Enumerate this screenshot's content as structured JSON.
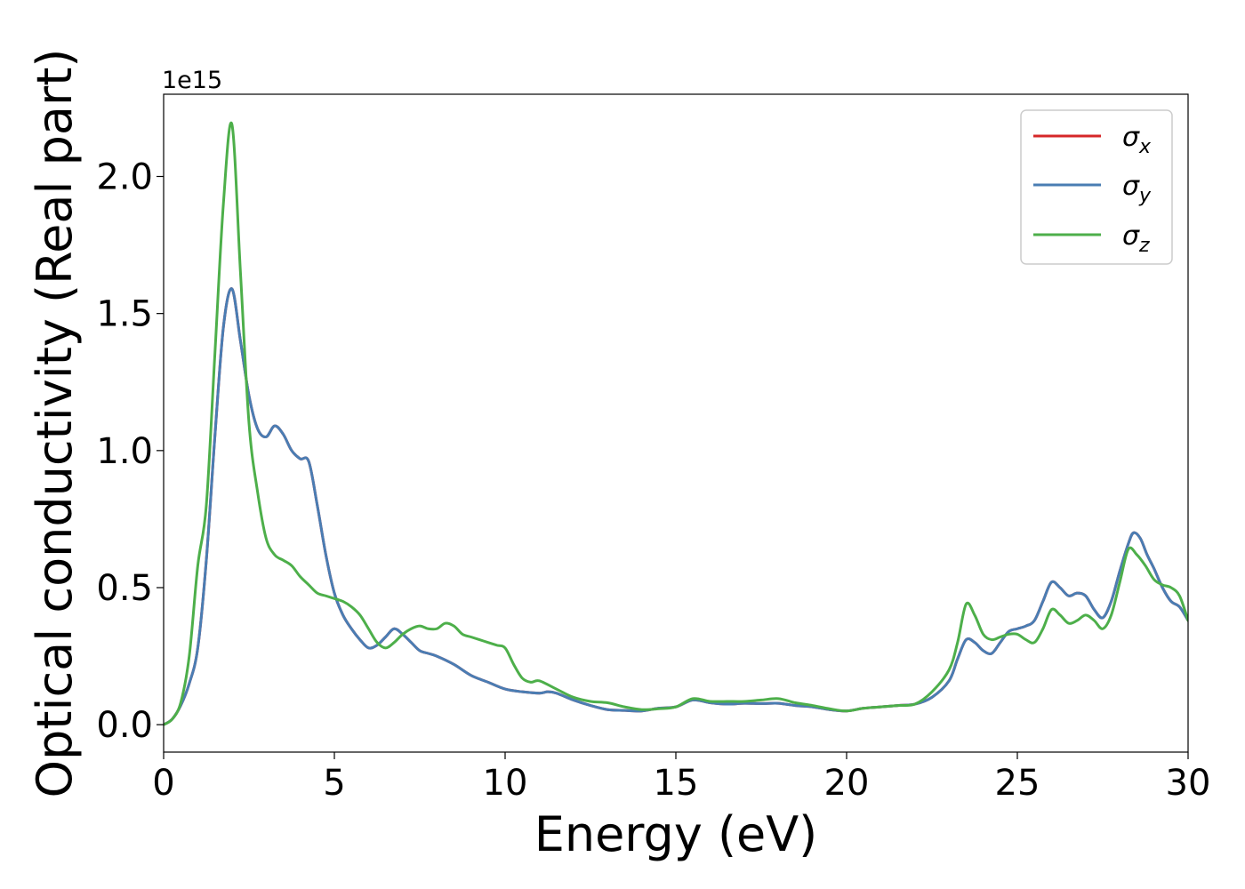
{
  "chart_data": {
    "type": "line",
    "xlabel": "Energy (eV)",
    "ylabel": "Optical conductivity (Real part)",
    "y_offset_label": "1e15",
    "y_scale": 1000000000000000.0,
    "xlim": [
      0,
      30
    ],
    "ylim": [
      -0.1,
      2.3
    ],
    "x_ticks": [
      0,
      5,
      10,
      15,
      20,
      25,
      30
    ],
    "x_tick_labels": [
      "0",
      "5",
      "10",
      "15",
      "20",
      "25",
      "30"
    ],
    "y_ticks": [
      0.0,
      0.5,
      1.0,
      1.5,
      2.0
    ],
    "y_tick_labels": [
      "0.0",
      "0.5",
      "1.0",
      "1.5",
      "2.0"
    ],
    "grid": false,
    "legend_position": "top-right",
    "series": [
      {
        "name": "σx",
        "label_main": "σ",
        "label_sub": "x",
        "color": "#d62728",
        "x": [
          0,
          0.25,
          0.5,
          0.75,
          1.0,
          1.25,
          1.5,
          1.75,
          2.0,
          2.25,
          2.5,
          2.75,
          3.0,
          3.25,
          3.5,
          3.75,
          4.0,
          4.25,
          4.5,
          4.75,
          5.0,
          5.25,
          5.5,
          5.75,
          6.0,
          6.25,
          6.5,
          6.75,
          7.0,
          7.25,
          7.5,
          7.75,
          8.0,
          8.5,
          9.0,
          9.5,
          10.0,
          10.5,
          11.0,
          11.25,
          11.5,
          12.0,
          12.5,
          13.0,
          13.5,
          14.0,
          14.5,
          15.0,
          15.5,
          16.0,
          16.5,
          17.0,
          17.5,
          18.0,
          18.5,
          19.0,
          19.5,
          20.0,
          20.5,
          21.0,
          21.5,
          22.0,
          22.5,
          23.0,
          23.25,
          23.5,
          23.75,
          24.0,
          24.25,
          24.5,
          24.75,
          25.0,
          25.25,
          25.5,
          25.75,
          26.0,
          26.25,
          26.5,
          26.75,
          27.0,
          27.25,
          27.5,
          27.75,
          28.0,
          28.25,
          28.4,
          28.6,
          28.8,
          29.0,
          29.25,
          29.5,
          29.75,
          30.0
        ],
        "y": [
          0.0,
          0.02,
          0.07,
          0.15,
          0.28,
          0.6,
          1.05,
          1.45,
          1.59,
          1.4,
          1.2,
          1.08,
          1.05,
          1.09,
          1.06,
          1.0,
          0.97,
          0.96,
          0.8,
          0.62,
          0.48,
          0.4,
          0.35,
          0.31,
          0.28,
          0.29,
          0.32,
          0.35,
          0.33,
          0.3,
          0.27,
          0.26,
          0.25,
          0.22,
          0.18,
          0.155,
          0.13,
          0.12,
          0.115,
          0.12,
          0.115,
          0.09,
          0.07,
          0.055,
          0.052,
          0.05,
          0.06,
          0.065,
          0.09,
          0.08,
          0.075,
          0.078,
          0.077,
          0.078,
          0.07,
          0.065,
          0.055,
          0.05,
          0.06,
          0.065,
          0.07,
          0.075,
          0.1,
          0.16,
          0.24,
          0.31,
          0.3,
          0.27,
          0.26,
          0.3,
          0.34,
          0.35,
          0.36,
          0.38,
          0.45,
          0.52,
          0.5,
          0.47,
          0.48,
          0.47,
          0.42,
          0.39,
          0.45,
          0.56,
          0.66,
          0.7,
          0.68,
          0.62,
          0.57,
          0.5,
          0.45,
          0.43,
          0.38
        ]
      },
      {
        "name": "σy",
        "label_main": "σ",
        "label_sub": "y",
        "color": "#4a7db3",
        "x": [
          0,
          0.25,
          0.5,
          0.75,
          1.0,
          1.25,
          1.5,
          1.75,
          2.0,
          2.25,
          2.5,
          2.75,
          3.0,
          3.25,
          3.5,
          3.75,
          4.0,
          4.25,
          4.5,
          4.75,
          5.0,
          5.25,
          5.5,
          5.75,
          6.0,
          6.25,
          6.5,
          6.75,
          7.0,
          7.25,
          7.5,
          7.75,
          8.0,
          8.5,
          9.0,
          9.5,
          10.0,
          10.5,
          11.0,
          11.25,
          11.5,
          12.0,
          12.5,
          13.0,
          13.5,
          14.0,
          14.5,
          15.0,
          15.5,
          16.0,
          16.5,
          17.0,
          17.5,
          18.0,
          18.5,
          19.0,
          19.5,
          20.0,
          20.5,
          21.0,
          21.5,
          22.0,
          22.5,
          23.0,
          23.25,
          23.5,
          23.75,
          24.0,
          24.25,
          24.5,
          24.75,
          25.0,
          25.25,
          25.5,
          25.75,
          26.0,
          26.25,
          26.5,
          26.75,
          27.0,
          27.25,
          27.5,
          27.75,
          28.0,
          28.25,
          28.4,
          28.6,
          28.8,
          29.0,
          29.25,
          29.5,
          29.75,
          30.0
        ],
        "y": [
          0.0,
          0.02,
          0.07,
          0.15,
          0.28,
          0.6,
          1.05,
          1.45,
          1.59,
          1.4,
          1.2,
          1.08,
          1.05,
          1.09,
          1.06,
          1.0,
          0.97,
          0.96,
          0.8,
          0.62,
          0.48,
          0.4,
          0.35,
          0.31,
          0.28,
          0.29,
          0.32,
          0.35,
          0.33,
          0.3,
          0.27,
          0.26,
          0.25,
          0.22,
          0.18,
          0.155,
          0.13,
          0.12,
          0.115,
          0.12,
          0.115,
          0.09,
          0.07,
          0.055,
          0.052,
          0.05,
          0.06,
          0.065,
          0.09,
          0.08,
          0.075,
          0.078,
          0.077,
          0.078,
          0.07,
          0.065,
          0.055,
          0.05,
          0.06,
          0.065,
          0.07,
          0.075,
          0.1,
          0.16,
          0.24,
          0.31,
          0.3,
          0.27,
          0.26,
          0.3,
          0.34,
          0.35,
          0.36,
          0.38,
          0.45,
          0.52,
          0.5,
          0.47,
          0.48,
          0.47,
          0.42,
          0.39,
          0.45,
          0.56,
          0.66,
          0.7,
          0.68,
          0.62,
          0.57,
          0.5,
          0.45,
          0.43,
          0.38
        ]
      },
      {
        "name": "σz",
        "label_main": "σ",
        "label_sub": "z",
        "color": "#4daf4a",
        "x": [
          0,
          0.25,
          0.5,
          0.75,
          1.0,
          1.25,
          1.5,
          1.75,
          2.0,
          2.25,
          2.5,
          2.75,
          3.0,
          3.25,
          3.5,
          3.75,
          4.0,
          4.25,
          4.5,
          4.75,
          5.0,
          5.25,
          5.5,
          5.75,
          6.0,
          6.25,
          6.5,
          6.75,
          7.0,
          7.25,
          7.5,
          7.75,
          8.0,
          8.25,
          8.5,
          8.75,
          9.0,
          9.25,
          9.5,
          9.75,
          10.0,
          10.25,
          10.5,
          10.75,
          11.0,
          11.5,
          12.0,
          12.5,
          13.0,
          13.5,
          14.0,
          14.5,
          15.0,
          15.5,
          16.0,
          16.5,
          17.0,
          17.5,
          18.0,
          18.5,
          19.0,
          19.5,
          20.0,
          20.5,
          21.0,
          21.5,
          22.0,
          22.5,
          23.0,
          23.25,
          23.5,
          23.75,
          24.0,
          24.25,
          24.5,
          24.75,
          25.0,
          25.25,
          25.5,
          25.75,
          26.0,
          26.25,
          26.5,
          26.75,
          27.0,
          27.25,
          27.5,
          27.75,
          28.0,
          28.25,
          28.5,
          28.75,
          29.0,
          29.25,
          29.5,
          29.75,
          30.0
        ],
        "y": [
          0.0,
          0.02,
          0.08,
          0.25,
          0.58,
          0.8,
          1.35,
          1.9,
          2.19,
          1.65,
          1.1,
          0.85,
          0.68,
          0.62,
          0.6,
          0.58,
          0.54,
          0.51,
          0.48,
          0.47,
          0.46,
          0.45,
          0.43,
          0.4,
          0.35,
          0.3,
          0.28,
          0.3,
          0.33,
          0.35,
          0.36,
          0.35,
          0.35,
          0.37,
          0.36,
          0.33,
          0.32,
          0.31,
          0.3,
          0.29,
          0.28,
          0.22,
          0.17,
          0.155,
          0.16,
          0.13,
          0.1,
          0.085,
          0.08,
          0.065,
          0.055,
          0.058,
          0.065,
          0.095,
          0.085,
          0.085,
          0.085,
          0.09,
          0.095,
          0.08,
          0.07,
          0.058,
          0.05,
          0.06,
          0.065,
          0.07,
          0.075,
          0.12,
          0.2,
          0.3,
          0.44,
          0.4,
          0.33,
          0.31,
          0.32,
          0.33,
          0.33,
          0.31,
          0.3,
          0.35,
          0.42,
          0.4,
          0.37,
          0.38,
          0.4,
          0.38,
          0.35,
          0.4,
          0.52,
          0.64,
          0.62,
          0.58,
          0.53,
          0.51,
          0.5,
          0.47,
          0.38
        ]
      }
    ]
  }
}
